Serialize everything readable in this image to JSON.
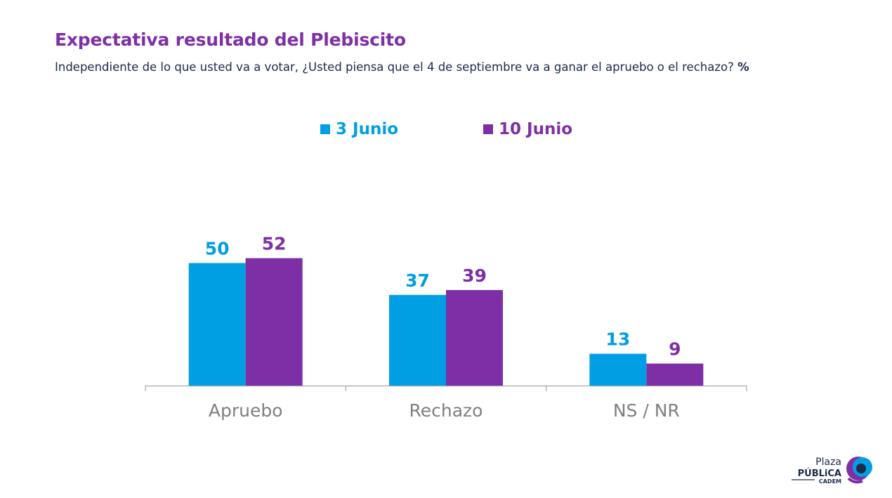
{
  "header": {
    "title": "Expectativa resultado del Plebiscito",
    "subtitle": "Independiente de lo que usted va a votar, ¿Usted piensa que el 4 de septiembre va a ganar el apruebo o el rechazo?",
    "subtitle_unit": "%"
  },
  "logo": {
    "line1": "Plaza",
    "line2": "PÚBLiCA",
    "line3": "CADEM"
  },
  "chart_data": {
    "type": "bar",
    "title": "Expectativa resultado del Plebiscito",
    "categories": [
      "Apruebo",
      "Rechazo",
      "NS / NR"
    ],
    "series": [
      {
        "name": "3 Junio",
        "color": "#009fe3",
        "values": [
          50,
          37,
          13
        ]
      },
      {
        "name": "10 Junio",
        "color": "#7f2fa5",
        "values": [
          52,
          39,
          9
        ]
      }
    ],
    "ylim": [
      0,
      100
    ],
    "grid": false,
    "legend_position": "top-center",
    "data_labels": true
  }
}
